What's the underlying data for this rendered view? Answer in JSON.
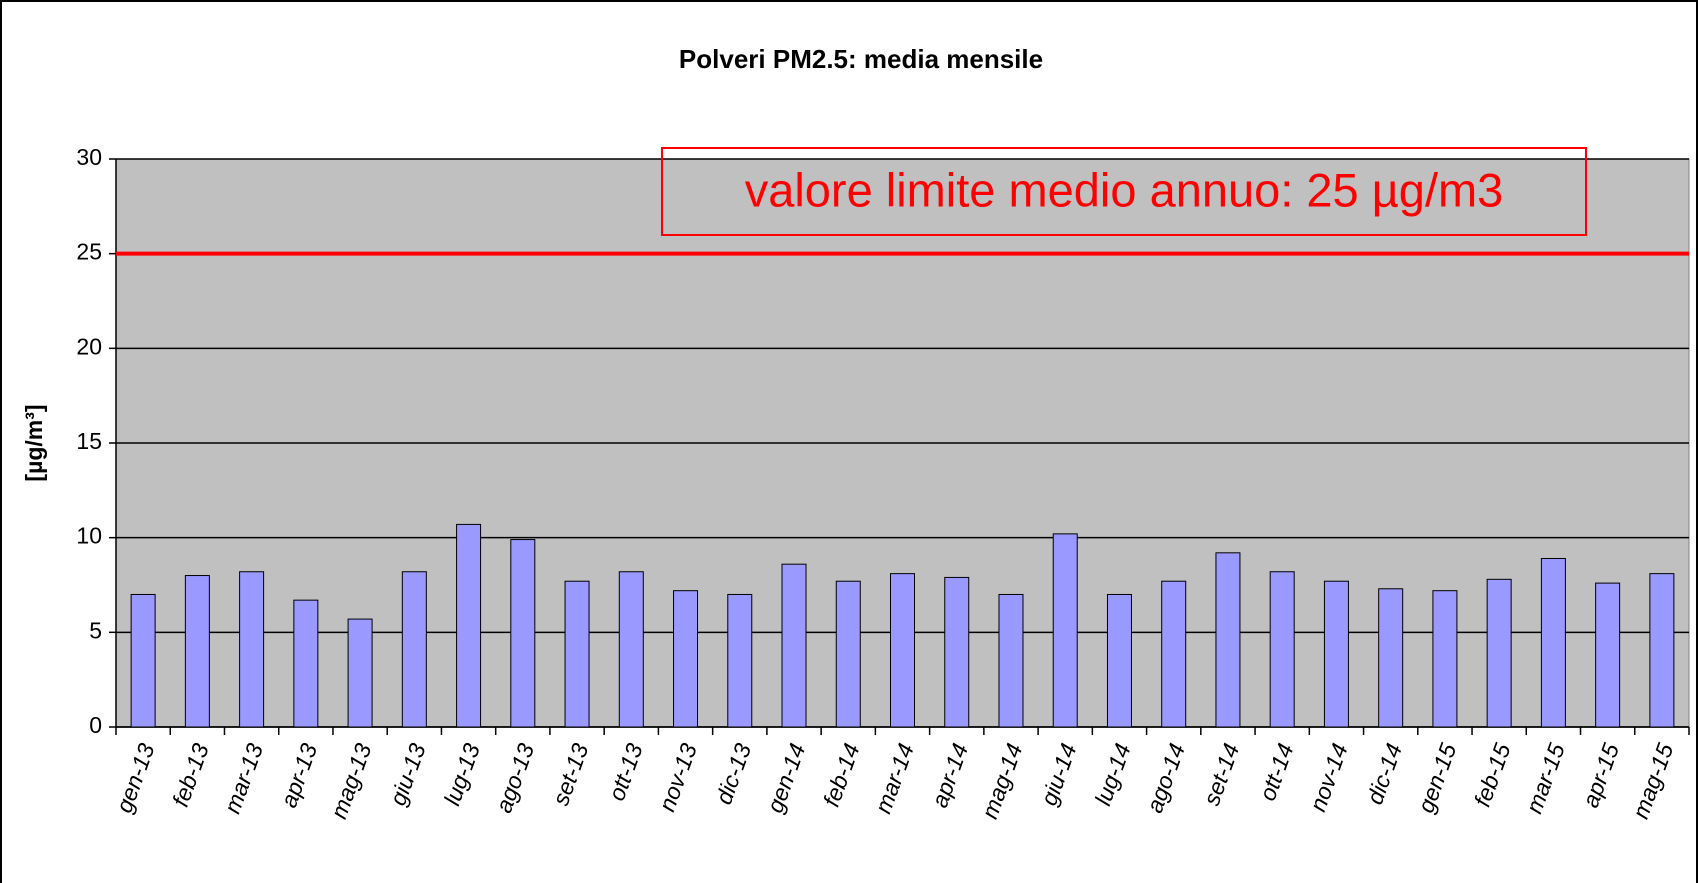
{
  "chart_data": {
    "type": "bar",
    "title": "Polveri PM2.5: media mensile",
    "ylabel": "[µg/m³]",
    "categories": [
      "gen-13",
      "feb-13",
      "mar-13",
      "apr-13",
      "mag-13",
      "giu-13",
      "lug-13",
      "ago-13",
      "set-13",
      "ott-13",
      "nov-13",
      "dic-13",
      "gen-14",
      "feb-14",
      "mar-14",
      "apr-14",
      "mag-14",
      "giu-14",
      "lug-14",
      "ago-14",
      "set-14",
      "ott-14",
      "nov-14",
      "dic-14",
      "gen-15",
      "feb-15",
      "mar-15",
      "apr-15",
      "mag-15"
    ],
    "values": [
      7.0,
      8.0,
      8.2,
      6.7,
      5.7,
      8.2,
      10.7,
      9.9,
      7.7,
      8.2,
      7.2,
      7.0,
      8.6,
      7.7,
      8.1,
      7.9,
      7.0,
      10.2,
      7.0,
      7.7,
      9.2,
      8.2,
      7.7,
      7.3,
      7.2,
      7.8,
      8.9,
      7.6,
      8.1
    ],
    "color": "#9999ff",
    "plot_background": "#c0c0c0",
    "ylim": [
      0,
      30
    ],
    "yticks": [
      0,
      5,
      10,
      15,
      20,
      25,
      30
    ],
    "grid": true,
    "reference_line": {
      "value": 25,
      "label": "valore limite medio annuo: 25 µg/m3",
      "color": "#ff0000"
    }
  }
}
